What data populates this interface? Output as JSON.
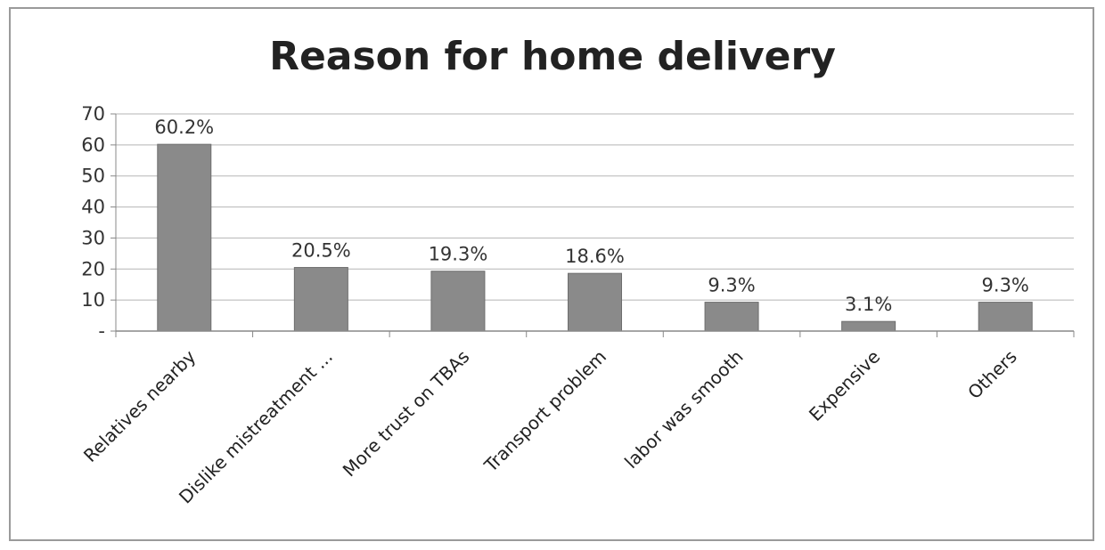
{
  "chart_data": {
    "type": "bar",
    "title": "Reason for home delivery",
    "categories": [
      "Relatives nearby",
      "Dislike mistreatment ...",
      "More trust on TBAs",
      "Transport problem",
      "labor was smooth",
      "Expensive",
      "Others"
    ],
    "values": [
      60.2,
      20.5,
      19.3,
      18.6,
      9.3,
      3.1,
      9.3
    ],
    "data_labels": [
      "60.2%",
      "20.5%",
      "19.3%",
      "18.6%",
      "9.3%",
      "3.1%",
      "9.3%"
    ],
    "y_ticks": [
      "-",
      "10",
      "20",
      "30",
      "40",
      "50",
      "60",
      "70"
    ],
    "ylim": [
      0,
      70
    ],
    "grid": true,
    "legend": "none",
    "bar_color": "#8a8a8a"
  }
}
